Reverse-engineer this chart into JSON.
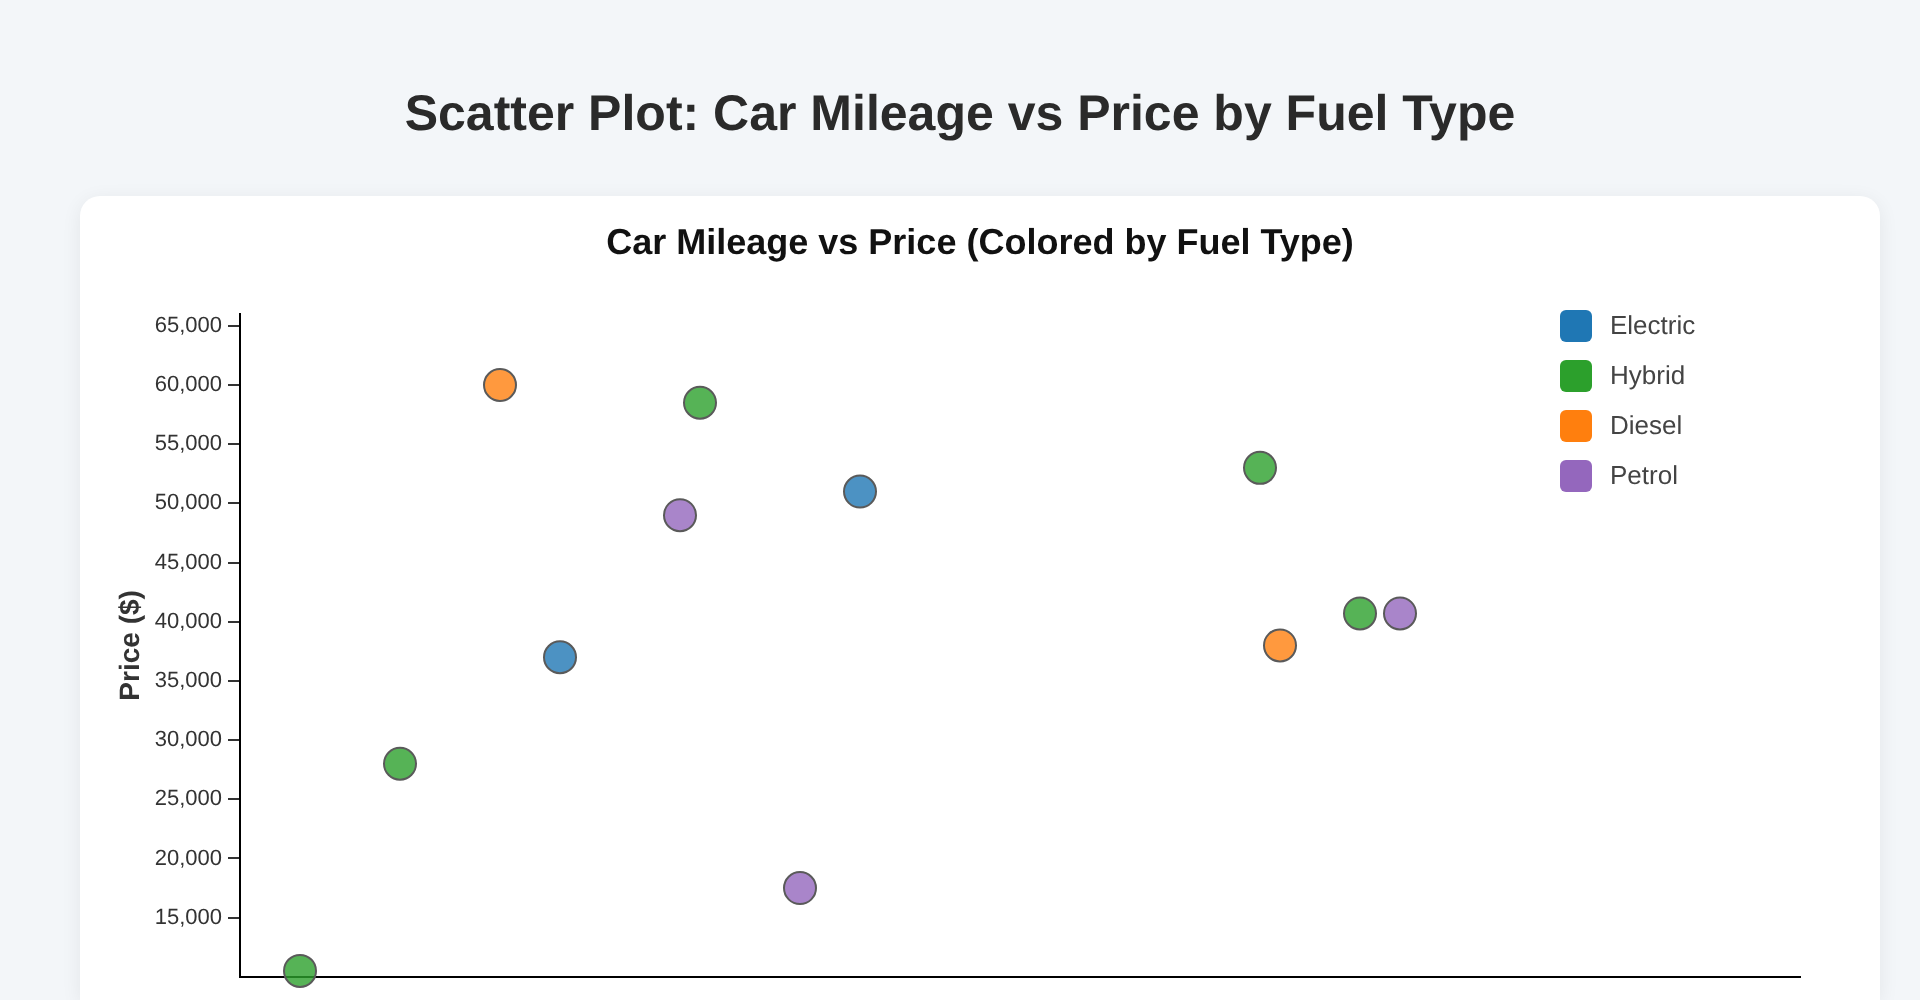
{
  "chart_data": {
    "type": "scatter",
    "title": "Scatter Plot: Car Mileage vs Price by Fuel Type",
    "subtitle": "Car Mileage vs Price (Colored by Fuel Type)",
    "ylabel": "Price ($)",
    "categories": [
      null,
      null,
      null,
      null,
      null,
      null,
      null,
      null,
      null,
      null,
      null,
      null,
      null,
      null,
      null,
      null,
      null,
      null,
      null,
      null,
      null,
      null,
      null,
      null,
      null,
      null,
      null,
      null,
      null,
      null,
      null,
      null,
      null,
      null,
      null,
      null,
      null,
      null,
      null,
      null,
      null,
      null,
      null,
      null,
      null,
      null,
      null,
      null,
      null,
      null,
      null,
      null,
      null,
      null,
      null,
      null,
      null,
      null,
      null,
      null,
      null,
      null,
      null,
      null,
      null,
      null,
      null,
      null,
      null,
      null,
      null,
      null,
      null,
      null,
      null,
      null,
      null,
      null,
      null
    ],
    "series": [
      {
        "name": "Electric",
        "color": "#1f77b4",
        "values": [
          null,
          null,
          null,
          null,
          null,
          null,
          null,
          null,
          null,
          null,
          null,
          null,
          null,
          null,
          null,
          null,
          37000,
          null,
          null,
          null,
          null,
          null,
          null,
          null,
          null,
          null,
          null,
          null,
          null,
          null,
          null,
          51000,
          null,
          null,
          null,
          null,
          null,
          null,
          null,
          null,
          null,
          null,
          null,
          null,
          null,
          null,
          null,
          null,
          null,
          null,
          null,
          null,
          null,
          null,
          null,
          null,
          null,
          null,
          null,
          null,
          null,
          null,
          null,
          null,
          null,
          null,
          null,
          null,
          null,
          null,
          null,
          null,
          null,
          null,
          null,
          null,
          null,
          null,
          null
        ]
      },
      {
        "name": "Hybrid",
        "color": "#2ca02c",
        "values": [
          null,
          null,
          null,
          10500,
          null,
          null,
          null,
          null,
          28000,
          null,
          null,
          null,
          null,
          null,
          null,
          null,
          null,
          null,
          null,
          null,
          null,
          null,
          null,
          58500,
          null,
          null,
          null,
          null,
          null,
          null,
          null,
          null,
          null,
          null,
          null,
          null,
          null,
          null,
          null,
          null,
          null,
          null,
          null,
          null,
          null,
          null,
          null,
          null,
          null,
          null,
          null,
          53000,
          null,
          null,
          null,
          null,
          40700,
          null,
          null,
          null,
          null,
          null,
          null,
          null,
          null,
          null,
          null,
          null,
          null,
          null,
          null,
          null,
          null,
          null,
          null,
          null,
          null,
          null,
          null
        ]
      },
      {
        "name": "Diesel",
        "color": "#ff7f0e",
        "values": [
          null,
          null,
          null,
          null,
          null,
          null,
          null,
          null,
          null,
          null,
          null,
          null,
          null,
          60000,
          null,
          null,
          null,
          null,
          null,
          null,
          null,
          null,
          null,
          null,
          null,
          null,
          null,
          null,
          null,
          null,
          null,
          null,
          null,
          null,
          null,
          null,
          null,
          null,
          null,
          null,
          null,
          null,
          null,
          null,
          null,
          null,
          null,
          null,
          null,
          null,
          null,
          null,
          38000,
          null,
          null,
          null,
          null,
          null,
          null,
          null,
          null,
          null,
          null,
          null,
          null,
          null,
          null,
          null,
          null,
          null,
          null,
          null,
          null,
          null,
          null,
          null,
          null,
          null,
          null
        ]
      },
      {
        "name": "Petrol",
        "color": "#9467bd",
        "values": [
          null,
          null,
          null,
          null,
          null,
          null,
          null,
          null,
          null,
          null,
          null,
          null,
          null,
          null,
          null,
          null,
          null,
          null,
          null,
          null,
          null,
          null,
          49000,
          null,
          null,
          null,
          null,
          null,
          17500,
          null,
          null,
          null,
          null,
          null,
          null,
          null,
          null,
          null,
          null,
          null,
          null,
          null,
          null,
          null,
          null,
          null,
          null,
          null,
          null,
          null,
          null,
          null,
          null,
          null,
          null,
          null,
          null,
          null,
          40700,
          null,
          null,
          null,
          null,
          null,
          null,
          null,
          null,
          null,
          null,
          null,
          null,
          null,
          null,
          null,
          null,
          null,
          null,
          null,
          null
        ]
      }
    ],
    "ylim": [
      10000,
      66000
    ],
    "yticks": [
      {
        "value": 15000,
        "label": "15,000"
      },
      {
        "value": 20000,
        "label": "20,000"
      },
      {
        "value": 25000,
        "label": "25,000"
      },
      {
        "value": 30000,
        "label": "30,000"
      },
      {
        "value": 35000,
        "label": "35,000"
      },
      {
        "value": 40000,
        "label": "40,000"
      },
      {
        "value": 45000,
        "label": "45,000"
      },
      {
        "value": 50000,
        "label": "50,000"
      },
      {
        "value": 55000,
        "label": "55,000"
      },
      {
        "value": 60000,
        "label": "60,000"
      },
      {
        "value": 65000,
        "label": "65,000"
      }
    ],
    "tick_labels": "y",
    "marker": "circle",
    "legend": "top right"
  }
}
